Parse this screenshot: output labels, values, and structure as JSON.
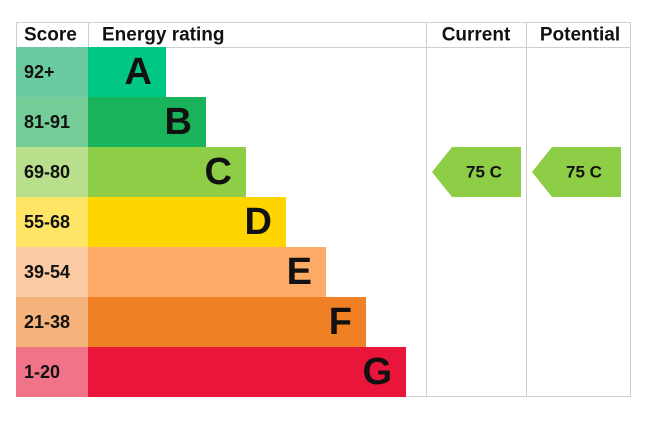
{
  "header": {
    "score": "Score",
    "rating": "Energy rating",
    "current": "Current",
    "potential": "Potential"
  },
  "bands": [
    {
      "score": "92+",
      "letter": "A"
    },
    {
      "score": "81-91",
      "letter": "B"
    },
    {
      "score": "69-80",
      "letter": "C"
    },
    {
      "score": "55-68",
      "letter": "D"
    },
    {
      "score": "39-54",
      "letter": "E"
    },
    {
      "score": "21-38",
      "letter": "F"
    },
    {
      "score": "1-20",
      "letter": "G"
    }
  ],
  "current": {
    "label": "75 C"
  },
  "potential": {
    "label": "75 C"
  }
}
